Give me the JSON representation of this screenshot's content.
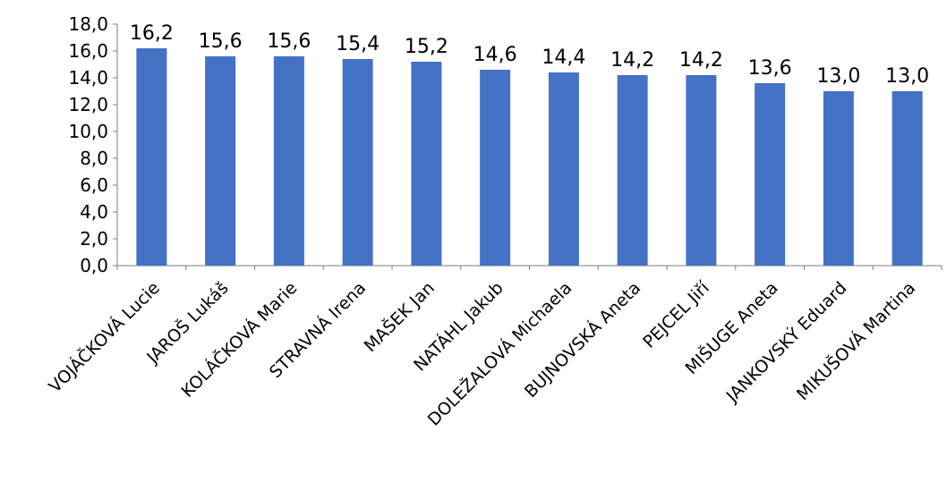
{
  "chart_data": {
    "type": "bar",
    "title": "",
    "xlabel": "",
    "ylabel": "",
    "ylim": [
      0,
      18
    ],
    "y_ticks": [
      0,
      2,
      4,
      6,
      8,
      10,
      12,
      14,
      16,
      18
    ],
    "y_tick_labels": [
      "0,0",
      "2,0",
      "4,0",
      "6,0",
      "8,0",
      "10,0",
      "12,0",
      "14,0",
      "16,0",
      "18,0"
    ],
    "grid": false,
    "legend": "none",
    "bar_color": "#4472C4",
    "categories": [
      "VOJÁČKOVÁ Lucie",
      "JAROŠ Lukáš",
      "KOLÁČKOVÁ Marie",
      "STRAVNÁ Irena",
      "MAŠEK Jan",
      "NATÁHL Jakub",
      "DOLEŽALOVÁ Michaela",
      "BUJNOVSKÁ Aneta",
      "PEJCEL Jiří",
      "MIŠUGE Aneta",
      "JANKOVSKÝ Eduard",
      "MIKUŠOVÁ Martina"
    ],
    "values": [
      16.2,
      15.6,
      15.6,
      15.4,
      15.2,
      14.6,
      14.4,
      14.2,
      14.2,
      13.6,
      13.0,
      13.0
    ],
    "data_labels": [
      "16,2",
      "15,6",
      "15,6",
      "15,4",
      "15,2",
      "14,6",
      "14,4",
      "14,2",
      "14,2",
      "13,6",
      "13,0",
      "13,0"
    ]
  }
}
